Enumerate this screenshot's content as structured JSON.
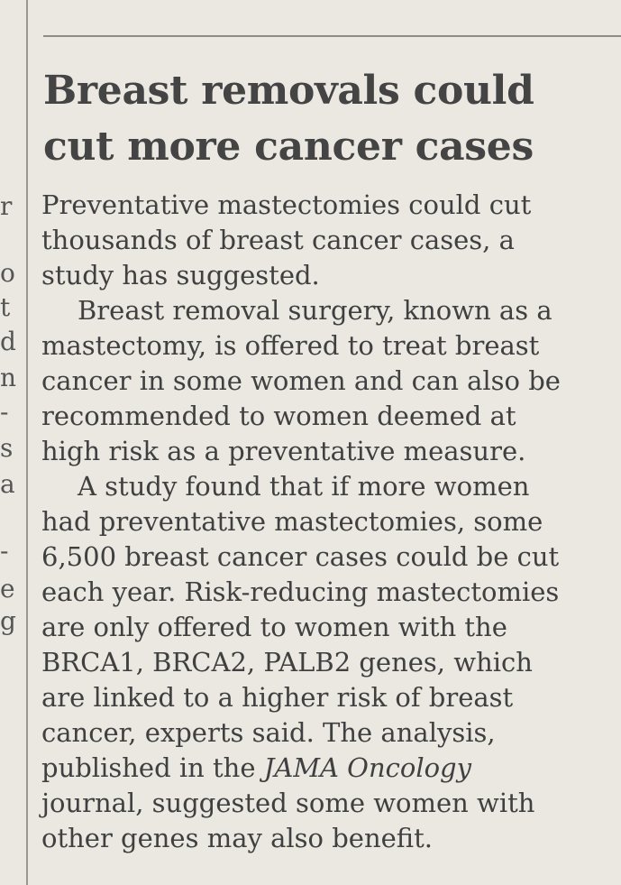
{
  "article": {
    "headline": [
      "Breast removals could",
      "cut more cancer cases"
    ],
    "paragraphs": [
      [
        "Preventative mastectomies could cut",
        "thousands of breast cancer cases, a",
        "study has suggested."
      ],
      [
        "Breast removal surgery, known as a",
        "mastectomy, is offered to treat breast",
        "cancer in some women and can also be",
        "recommended to women deemed at",
        "high risk as a preventative measure."
      ],
      [
        "A study found that if more women",
        "had preventative mastectomies, some",
        "6,500 breast cancer cases could be cut",
        "each year. Risk-reducing mastectomies",
        "are only offered to women with the",
        "BRCA1, BRCA2, PALB2 genes, which",
        "are linked to a higher risk of breast",
        "cancer, experts said. The analysis,",
        {
          "parts": [
            {
              "text": "published in the "
            },
            {
              "text": "JAMA Oncology",
              "italic": true
            }
          ]
        },
        "journal, suggested some women with",
        "other genes may also benefit."
      ]
    ]
  },
  "margin_fragments": [
    "r",
    "o",
    "t",
    "d",
    "n",
    "-",
    "s",
    "a",
    "-",
    "e",
    "g"
  ]
}
